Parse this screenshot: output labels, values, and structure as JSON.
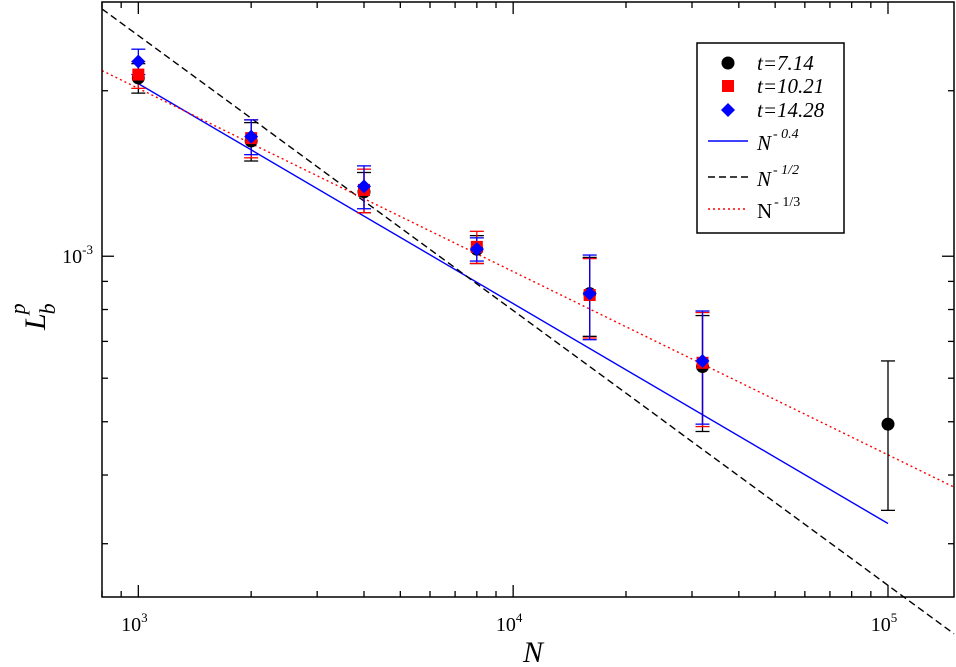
{
  "chart_data": {
    "type": "scatter",
    "xlabel": "N",
    "ylabel": {
      "base": "L",
      "sub": "b",
      "sup": "p"
    },
    "x_scale": "log",
    "y_scale": "log",
    "xlim": [
      800,
      150000
    ],
    "ylim": [
      0.00024,
      0.0029
    ],
    "x_ticks": [
      {
        "value": 1000,
        "base": "10",
        "exp": "3"
      },
      {
        "value": 10000,
        "base": "10",
        "exp": "4"
      },
      {
        "value": 100000,
        "base": "10",
        "exp": "5"
      }
    ],
    "y_ticks": [
      {
        "value": 0.001,
        "base": "10",
        "exp": "-3"
      }
    ],
    "grid": false,
    "legend_position": "top-right",
    "series": [
      {
        "name": "t=7.14",
        "marker": "circle",
        "color": "#000000",
        "points": [
          {
            "x": 1000,
            "y": 0.00211,
            "err": 0.00013
          },
          {
            "x": 2000,
            "y": 0.00162,
            "err": 0.00013
          },
          {
            "x": 4000,
            "y": 0.00131,
            "err": 0.00011
          },
          {
            "x": 8000,
            "y": 0.00103,
            "err": 6e-05
          },
          {
            "x": 16000,
            "y": 0.000855,
            "err": 0.00014
          },
          {
            "x": 32000,
            "y": 0.00063,
            "err": 0.00015
          },
          {
            "x": 100000,
            "y": 0.000495,
            "err": 0.00015
          }
        ]
      },
      {
        "name": "t=10.21",
        "marker": "square",
        "color": "#ff0000",
        "points": [
          {
            "x": 1000,
            "y": 0.00214,
            "err": 0.00012
          },
          {
            "x": 2000,
            "y": 0.00164,
            "err": 0.00013
          },
          {
            "x": 4000,
            "y": 0.00132,
            "err": 0.00012
          },
          {
            "x": 8000,
            "y": 0.00104,
            "err": 7e-05
          },
          {
            "x": 16000,
            "y": 0.00085,
            "err": 0.00014
          },
          {
            "x": 32000,
            "y": 0.00064,
            "err": 0.00015
          }
        ]
      },
      {
        "name": "t=14.28",
        "marker": "diamond",
        "color": "#0000ff",
        "points": [
          {
            "x": 1000,
            "y": 0.00226,
            "err": 0.00012
          },
          {
            "x": 2000,
            "y": 0.00165,
            "err": 0.00012
          },
          {
            "x": 4000,
            "y": 0.00134,
            "err": 0.00012
          },
          {
            "x": 8000,
            "y": 0.00103,
            "err": 5e-05
          },
          {
            "x": 16000,
            "y": 0.000855,
            "err": 0.00015
          },
          {
            "x": 32000,
            "y": 0.000645,
            "err": 0.00015
          }
        ]
      }
    ],
    "fit_lines": [
      {
        "name_base": "N",
        "name_exp": "- 0.4",
        "exponent": -0.4,
        "color": "#0000ff",
        "style": "solid",
        "italic": true,
        "x_range": [
          1000,
          100000
        ],
        "y_at_1000": 0.00206
      },
      {
        "name_base": "N",
        "name_exp": "- 1/2",
        "exponent": -0.5,
        "color": "#000000",
        "style": "dashed",
        "italic": true,
        "x_range": [
          800,
          150000
        ],
        "y_at_1000": 0.00252
      },
      {
        "name_base": "N",
        "name_exp": "- 1/3",
        "exponent": -0.3333,
        "color": "#ff0000",
        "style": "dotted",
        "italic": false,
        "x_range": [
          800,
          150000
        ],
        "y_at_1000": 0.00202
      }
    ]
  }
}
